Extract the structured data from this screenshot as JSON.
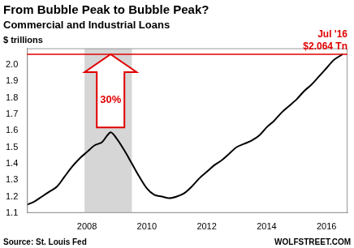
{
  "chart_data": {
    "type": "line",
    "title": "From Bubble Peak to Bubble Peak?",
    "subtitle": "Commercial and Industrial Loans",
    "y_label": "$ trillions",
    "source": "Source: St. Louis Fed",
    "watermark": "WOLFSTREET.COM",
    "x": [
      2006.0,
      2006.25,
      2006.5,
      2006.75,
      2007.0,
      2007.25,
      2007.5,
      2007.75,
      2008.0,
      2008.25,
      2008.5,
      2008.79,
      2009.0,
      2009.25,
      2009.5,
      2009.75,
      2010.0,
      2010.25,
      2010.5,
      2010.75,
      2011.0,
      2011.25,
      2011.5,
      2011.75,
      2012.0,
      2012.25,
      2012.5,
      2012.75,
      2013.0,
      2013.25,
      2013.5,
      2013.75,
      2014.0,
      2014.25,
      2014.5,
      2014.75,
      2015.0,
      2015.25,
      2015.5,
      2015.75,
      2016.0,
      2016.25,
      2016.54
    ],
    "values": [
      1.15,
      1.17,
      1.2,
      1.23,
      1.26,
      1.32,
      1.38,
      1.43,
      1.47,
      1.51,
      1.53,
      1.59,
      1.55,
      1.48,
      1.4,
      1.32,
      1.25,
      1.21,
      1.2,
      1.19,
      1.2,
      1.22,
      1.26,
      1.31,
      1.35,
      1.39,
      1.42,
      1.46,
      1.5,
      1.52,
      1.54,
      1.57,
      1.62,
      1.66,
      1.71,
      1.75,
      1.79,
      1.84,
      1.88,
      1.93,
      1.98,
      2.03,
      2.064
    ],
    "color": "#000000",
    "xlim": [
      2006,
      2016.7
    ],
    "xticks": [
      2008,
      2010,
      2012,
      2014,
      2016
    ],
    "ylim": [
      1.1,
      2.1
    ],
    "yticks": [
      1.1,
      1.2,
      1.3,
      1.4,
      1.5,
      1.6,
      1.7,
      1.8,
      1.9,
      {
        "value": 2,
        "label": "2.0"
      }
    ],
    "grid": false,
    "shaded_x": [
      2007.92,
      2009.5
    ],
    "peak_line": {
      "value": 2.064,
      "label": "$2.064 Tn",
      "date_label": "Jul '16",
      "color": "#e00000"
    },
    "arrow": {
      "x": 2008.79,
      "from": 1.59,
      "to": 2.064,
      "label": "30%",
      "color": "#e00000"
    }
  }
}
